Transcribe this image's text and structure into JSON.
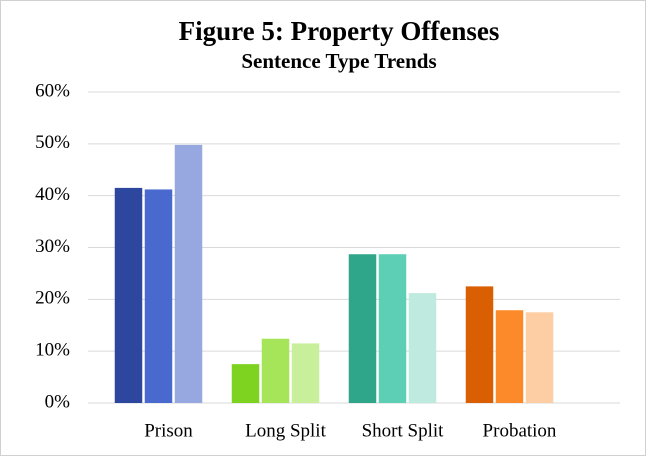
{
  "chart_data": {
    "type": "grouped_bar",
    "title": "Figure 5: Property Offenses",
    "subtitle": "Sentence Type Trends",
    "categories": [
      "Prison",
      "Long Split",
      "Short Split",
      "Probation"
    ],
    "values": [
      [
        41.5,
        41.2,
        49.8
      ],
      [
        7.5,
        12.4,
        11.5
      ],
      [
        28.7,
        28.7,
        21.2
      ],
      [
        22.5,
        17.9,
        17.5
      ]
    ],
    "colors": [
      [
        "#2e479e",
        "#4a69cf",
        "#97a8e0"
      ],
      [
        "#7ed321",
        "#a6e55a",
        "#c8f09a"
      ],
      [
        "#2fa58a",
        "#5ccfb4",
        "#bfeadf"
      ],
      [
        "#d95f02",
        "#fd8a2a",
        "#fdcda4"
      ]
    ],
    "ylim": [
      0,
      60
    ],
    "yticks": [
      {
        "value": 0,
        "label": "0%"
      },
      {
        "value": 10,
        "label": "10%"
      },
      {
        "value": 20,
        "label": "20%"
      },
      {
        "value": 30,
        "label": "30%"
      },
      {
        "value": 40,
        "label": "40%"
      },
      {
        "value": 50,
        "label": "50%"
      },
      {
        "value": 60,
        "label": "60%"
      }
    ],
    "grid": true
  }
}
